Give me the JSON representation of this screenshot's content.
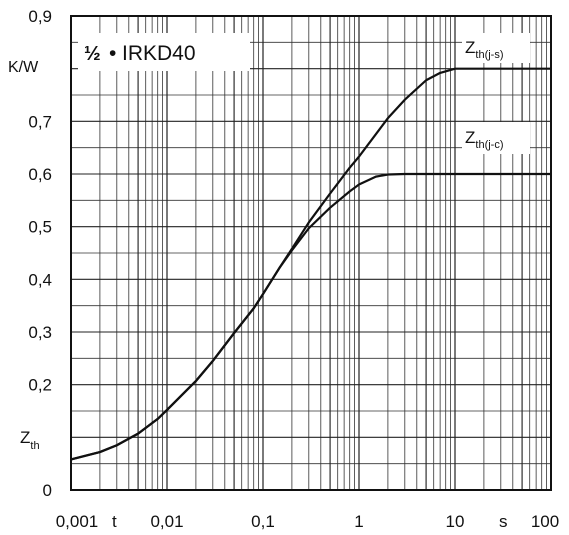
{
  "chart_data": {
    "type": "line",
    "title_fraction": "½",
    "title_bullet": "•",
    "title_name": "IRKD40",
    "x_scale": "log",
    "xlim": [
      0.001,
      100
    ],
    "ylim": [
      0,
      0.9
    ],
    "x_unit_label": "s",
    "x_axis_symbol": "t",
    "y_unit_label": "K/W",
    "y_axis_symbol": "Z",
    "y_axis_symbol_sub": "th",
    "x_ticks": [
      "0,001",
      "0,01",
      "0,1",
      "1",
      "10",
      "100"
    ],
    "y_ticks": [
      "0",
      "0,2",
      "0,3",
      "0,4",
      "0,5",
      "0,6",
      "0,7",
      "0,9"
    ],
    "grid": true,
    "series": [
      {
        "name": "Z",
        "name_sub": "th(j-s)",
        "color": "#111111",
        "x": [
          0.001,
          0.002,
          0.003,
          0.005,
          0.008,
          0.01,
          0.02,
          0.03,
          0.05,
          0.08,
          0.1,
          0.15,
          0.2,
          0.3,
          0.5,
          0.8,
          1,
          2,
          3,
          5,
          7,
          10,
          20,
          50,
          100
        ],
        "y": [
          0.058,
          0.072,
          0.085,
          0.107,
          0.135,
          0.152,
          0.207,
          0.245,
          0.298,
          0.345,
          0.372,
          0.423,
          0.458,
          0.508,
          0.563,
          0.612,
          0.633,
          0.706,
          0.741,
          0.778,
          0.792,
          0.8,
          0.8,
          0.8,
          0.8
        ]
      },
      {
        "name": "Z",
        "name_sub": "th(j-c)",
        "color": "#111111",
        "x": [
          0.001,
          0.002,
          0.003,
          0.005,
          0.008,
          0.01,
          0.02,
          0.03,
          0.05,
          0.08,
          0.1,
          0.15,
          0.2,
          0.3,
          0.5,
          0.8,
          1,
          1.5,
          2,
          3,
          5,
          10,
          20,
          50,
          100
        ],
        "y": [
          0.058,
          0.072,
          0.085,
          0.107,
          0.135,
          0.152,
          0.207,
          0.245,
          0.298,
          0.345,
          0.372,
          0.423,
          0.455,
          0.497,
          0.536,
          0.567,
          0.58,
          0.595,
          0.599,
          0.6,
          0.6,
          0.6,
          0.6,
          0.6,
          0.6
        ]
      }
    ]
  }
}
